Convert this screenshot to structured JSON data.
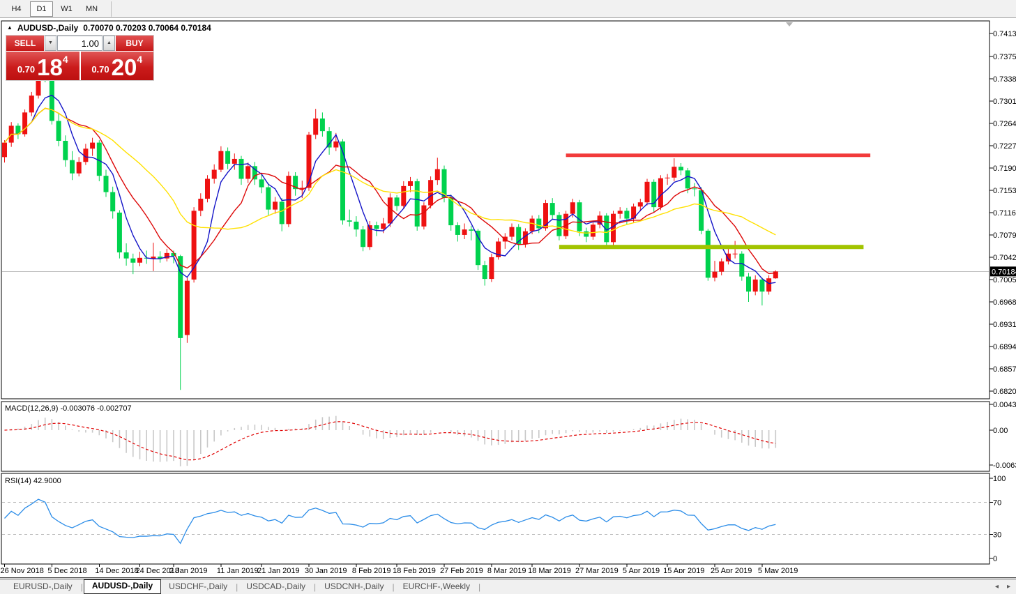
{
  "toolbar": {
    "timeframes": [
      {
        "label": "H4",
        "active": false
      },
      {
        "label": "D1",
        "active": true
      },
      {
        "label": "W1",
        "active": false
      },
      {
        "label": "MN",
        "active": false
      }
    ]
  },
  "chart_header": {
    "symbol": "AUDUSD-,Daily",
    "ohlc": "0.70070 0.70203 0.70064 0.70184"
  },
  "trade_panel": {
    "sell_label": "SELL",
    "buy_label": "BUY",
    "volume": "1.00",
    "sell_price": {
      "small": "0.70",
      "big": "18",
      "sup": "4"
    },
    "buy_price": {
      "small": "0.70",
      "big": "20",
      "sup": "4"
    }
  },
  "colors": {
    "bull_candle": "#ee1111",
    "bear_candle": "#00d24e",
    "ma_fast": "#1414c8",
    "ma_mid": "#dd0808",
    "ma_slow": "#ffe100",
    "resistance": "#f23b3b",
    "support": "#a2c400",
    "macd_hist": "#c8c8c8",
    "macd_signal": "#e00000",
    "rsi_line": "#2a8ce8",
    "current_price_line": "#c0c0c0",
    "price_tag_bg": "#000000"
  },
  "y_axis": {
    "values": [
      0.7413,
      0.7375,
      0.7338,
      0.7301,
      0.7264,
      0.7227,
      0.719,
      0.7153,
      0.7116,
      0.7079,
      0.7042,
      0.7005,
      0.6968,
      0.6931,
      0.6894,
      0.6857,
      0.682
    ],
    "current": "0.70184"
  },
  "macd": {
    "label": "MACD(12,26,9) -0.003076 -0.002707",
    "fast": 12,
    "slow": 26,
    "signal_period": 9,
    "value": -0.003076,
    "signal_value": -0.002707,
    "axis": [
      "0.004331",
      "0.00",
      "-0.00637"
    ]
  },
  "rsi": {
    "label": "RSI(14) 42.9000",
    "period": 14,
    "value": 42.9,
    "axis": [
      "100",
      "70",
      "30",
      "0"
    ],
    "levels": [
      70,
      30
    ]
  },
  "x_axis": {
    "labels": [
      {
        "text": "26 Nov 2018",
        "index": 0
      },
      {
        "text": "5 Dec 2018",
        "index": 7
      },
      {
        "text": "14 Dec 2018",
        "index": 14
      },
      {
        "text": "24 Dec 2018",
        "index": 20
      },
      {
        "text": "2 Jan 2019",
        "index": 25
      },
      {
        "text": "11 Jan 2019",
        "index": 32
      },
      {
        "text": "21 Jan 2019",
        "index": 38
      },
      {
        "text": "30 Jan 2019",
        "index": 45
      },
      {
        "text": "8 Feb 2019",
        "index": 52
      },
      {
        "text": "18 Feb 2019",
        "index": 58
      },
      {
        "text": "27 Feb 2019",
        "index": 65
      },
      {
        "text": "8 Mar 2019",
        "index": 72
      },
      {
        "text": "18 Mar 2019",
        "index": 78
      },
      {
        "text": "27 Mar 2019",
        "index": 85
      },
      {
        "text": "5 Apr 2019",
        "index": 92
      },
      {
        "text": "15 Apr 2019",
        "index": 98
      },
      {
        "text": "25 Apr 2019",
        "index": 105
      },
      {
        "text": "5 May 2019",
        "index": 112
      }
    ]
  },
  "tabs": {
    "items": [
      {
        "label": "EURUSD-,Daily",
        "active": false
      },
      {
        "label": "AUDUSD-,Daily",
        "active": true
      },
      {
        "label": "USDCHF-,Daily",
        "active": false
      },
      {
        "label": "USDCAD-,Daily",
        "active": false
      },
      {
        "label": "USDCNH-,Daily",
        "active": false
      },
      {
        "label": "EURCHF-,Weekly",
        "active": false
      }
    ]
  },
  "chart_data": {
    "type": "candlestick",
    "symbol": "AUDUSD",
    "timeframe": "Daily",
    "ylim": [
      0.682,
      0.7413
    ],
    "current_price": 0.70184,
    "moving_averages": [
      {
        "period": 5,
        "color_key": "ma_fast"
      },
      {
        "period": 10,
        "color_key": "ma_mid"
      },
      {
        "period": 20,
        "color_key": "ma_slow"
      }
    ],
    "levels": {
      "resistance": {
        "price": 0.7211,
        "from_index": 83,
        "to_index": 128,
        "color_key": "resistance",
        "width": 5
      },
      "support": {
        "price": 0.7059,
        "from_index": 82,
        "to_index": 127,
        "color_key": "support",
        "width": 6
      }
    },
    "candles": [
      [
        0.7208,
        0.7236,
        0.7199,
        0.7232
      ],
      [
        0.7232,
        0.7266,
        0.7225,
        0.726
      ],
      [
        0.726,
        0.7264,
        0.7238,
        0.7246
      ],
      [
        0.7246,
        0.7287,
        0.7242,
        0.7282
      ],
      [
        0.7282,
        0.7316,
        0.7276,
        0.731
      ],
      [
        0.731,
        0.7372,
        0.7305,
        0.7352
      ],
      [
        0.7352,
        0.736,
        0.7332,
        0.7341
      ],
      [
        0.7341,
        0.7346,
        0.7262,
        0.7268
      ],
      [
        0.7268,
        0.728,
        0.7226,
        0.7235
      ],
      [
        0.7235,
        0.7244,
        0.7192,
        0.7203
      ],
      [
        0.7203,
        0.7218,
        0.717,
        0.7181
      ],
      [
        0.7181,
        0.7208,
        0.7176,
        0.72
      ],
      [
        0.72,
        0.723,
        0.7195,
        0.7222
      ],
      [
        0.7222,
        0.724,
        0.721,
        0.7232
      ],
      [
        0.7232,
        0.7236,
        0.7168,
        0.7177
      ],
      [
        0.7177,
        0.7187,
        0.7142,
        0.715
      ],
      [
        0.715,
        0.7159,
        0.7106,
        0.7118
      ],
      [
        0.7116,
        0.712,
        0.704,
        0.705
      ],
      [
        0.705,
        0.7065,
        0.7028,
        0.704
      ],
      [
        0.704,
        0.7048,
        0.7014,
        0.7033
      ],
      [
        0.7033,
        0.7051,
        0.7027,
        0.7041
      ],
      [
        0.7041,
        0.7053,
        0.7031,
        0.704
      ],
      [
        0.704,
        0.7066,
        0.7019,
        0.7043
      ],
      [
        0.7043,
        0.7052,
        0.7033,
        0.704
      ],
      [
        0.704,
        0.7056,
        0.7035,
        0.7049
      ],
      [
        0.7049,
        0.7053,
        0.7032,
        0.7044
      ],
      [
        0.7044,
        0.7046,
        0.6822,
        0.6908
      ],
      [
        0.6913,
        0.7008,
        0.69,
        0.7003
      ],
      [
        0.7005,
        0.7125,
        0.7,
        0.7119
      ],
      [
        0.7119,
        0.7148,
        0.711,
        0.7139
      ],
      [
        0.7139,
        0.7178,
        0.7133,
        0.7172
      ],
      [
        0.7172,
        0.7196,
        0.7164,
        0.7187
      ],
      [
        0.7187,
        0.7226,
        0.7183,
        0.7218
      ],
      [
        0.7218,
        0.7224,
        0.7188,
        0.7197
      ],
      [
        0.7197,
        0.7214,
        0.7187,
        0.7205
      ],
      [
        0.7205,
        0.721,
        0.7162,
        0.7172
      ],
      [
        0.7172,
        0.7199,
        0.7165,
        0.7193
      ],
      [
        0.7193,
        0.72,
        0.7162,
        0.7171
      ],
      [
        0.7171,
        0.7179,
        0.7148,
        0.7158
      ],
      [
        0.7158,
        0.7165,
        0.7112,
        0.7121
      ],
      [
        0.7121,
        0.7142,
        0.7114,
        0.7134
      ],
      [
        0.7134,
        0.714,
        0.7085,
        0.7097
      ],
      [
        0.7097,
        0.7184,
        0.7092,
        0.7177
      ],
      [
        0.7177,
        0.7183,
        0.7144,
        0.7155
      ],
      [
        0.7155,
        0.7169,
        0.714,
        0.7157
      ],
      [
        0.7157,
        0.725,
        0.7152,
        0.7245
      ],
      [
        0.7245,
        0.7288,
        0.7238,
        0.7272
      ],
      [
        0.7272,
        0.7282,
        0.7242,
        0.7251
      ],
      [
        0.7251,
        0.7258,
        0.7212,
        0.7224
      ],
      [
        0.7224,
        0.7248,
        0.7218,
        0.7234
      ],
      [
        0.7234,
        0.7238,
        0.7096,
        0.7103
      ],
      [
        0.7103,
        0.7121,
        0.7093,
        0.7101
      ],
      [
        0.7101,
        0.711,
        0.7076,
        0.7088
      ],
      [
        0.7088,
        0.7094,
        0.7052,
        0.7059
      ],
      [
        0.7059,
        0.7102,
        0.7054,
        0.7095
      ],
      [
        0.7095,
        0.7101,
        0.7077,
        0.7089
      ],
      [
        0.7089,
        0.7107,
        0.7082,
        0.7098
      ],
      [
        0.7098,
        0.7148,
        0.7092,
        0.7141
      ],
      [
        0.7141,
        0.7145,
        0.7119,
        0.7127
      ],
      [
        0.7127,
        0.7168,
        0.7122,
        0.716
      ],
      [
        0.716,
        0.7175,
        0.715,
        0.7168
      ],
      [
        0.7168,
        0.7172,
        0.7086,
        0.7093
      ],
      [
        0.7093,
        0.7133,
        0.7088,
        0.7128
      ],
      [
        0.7128,
        0.7176,
        0.7123,
        0.717
      ],
      [
        0.717,
        0.7207,
        0.7162,
        0.7188
      ],
      [
        0.7188,
        0.7194,
        0.7133,
        0.7141
      ],
      [
        0.7141,
        0.7146,
        0.7086,
        0.7095
      ],
      [
        0.7095,
        0.71,
        0.7068,
        0.7079
      ],
      [
        0.7079,
        0.7098,
        0.7072,
        0.7088
      ],
      [
        0.7088,
        0.7094,
        0.707,
        0.7086
      ],
      [
        0.7086,
        0.7089,
        0.7021,
        0.7029
      ],
      [
        0.7029,
        0.7036,
        0.6995,
        0.7006
      ],
      [
        0.7006,
        0.7048,
        0.7001,
        0.7042
      ],
      [
        0.7042,
        0.7074,
        0.7038,
        0.7068
      ],
      [
        0.7068,
        0.7082,
        0.7056,
        0.7076
      ],
      [
        0.7076,
        0.7098,
        0.707,
        0.7092
      ],
      [
        0.7092,
        0.7097,
        0.7054,
        0.7064
      ],
      [
        0.7064,
        0.709,
        0.7058,
        0.7085
      ],
      [
        0.7085,
        0.7111,
        0.708,
        0.7106
      ],
      [
        0.7106,
        0.7112,
        0.7082,
        0.709
      ],
      [
        0.709,
        0.7137,
        0.7086,
        0.7132
      ],
      [
        0.7132,
        0.714,
        0.7104,
        0.7112
      ],
      [
        0.7112,
        0.7117,
        0.707,
        0.7077
      ],
      [
        0.7077,
        0.7119,
        0.7072,
        0.7114
      ],
      [
        0.7114,
        0.7139,
        0.7108,
        0.7133
      ],
      [
        0.7133,
        0.7137,
        0.7077,
        0.7085
      ],
      [
        0.7085,
        0.7091,
        0.7067,
        0.7076
      ],
      [
        0.7076,
        0.7101,
        0.7071,
        0.7096
      ],
      [
        0.7096,
        0.7118,
        0.709,
        0.7111
      ],
      [
        0.7111,
        0.7115,
        0.7059,
        0.7067
      ],
      [
        0.7067,
        0.7119,
        0.7062,
        0.7114
      ],
      [
        0.7114,
        0.7125,
        0.7106,
        0.7119
      ],
      [
        0.7119,
        0.7124,
        0.7097,
        0.7106
      ],
      [
        0.7106,
        0.7131,
        0.71,
        0.7126
      ],
      [
        0.7126,
        0.7139,
        0.7118,
        0.7133
      ],
      [
        0.7133,
        0.7172,
        0.7128,
        0.7167
      ],
      [
        0.7167,
        0.7171,
        0.7117,
        0.7125
      ],
      [
        0.7125,
        0.7178,
        0.712,
        0.7173
      ],
      [
        0.7173,
        0.718,
        0.7162,
        0.7174
      ],
      [
        0.7174,
        0.7206,
        0.7168,
        0.7192
      ],
      [
        0.7192,
        0.7198,
        0.7178,
        0.7186
      ],
      [
        0.7186,
        0.719,
        0.7148,
        0.7156
      ],
      [
        0.7156,
        0.7165,
        0.7143,
        0.7155
      ],
      [
        0.7153,
        0.7158,
        0.708,
        0.7086
      ],
      [
        0.7086,
        0.7089,
        0.7003,
        0.7008
      ],
      [
        0.7008,
        0.7036,
        0.7002,
        0.7018
      ],
      [
        0.7018,
        0.704,
        0.7012,
        0.7035
      ],
      [
        0.7035,
        0.7056,
        0.703,
        0.7048
      ],
      [
        0.7048,
        0.7069,
        0.704,
        0.7048
      ],
      [
        0.7048,
        0.7052,
        0.7003,
        0.701
      ],
      [
        0.701,
        0.7016,
        0.6968,
        0.6985
      ],
      [
        0.6985,
        0.7012,
        0.6979,
        0.7005
      ],
      [
        0.7005,
        0.7008,
        0.6962,
        0.6985
      ],
      [
        0.6985,
        0.7012,
        0.698,
        0.7007
      ],
      [
        0.7007,
        0.70203,
        0.70064,
        0.70184
      ]
    ]
  }
}
